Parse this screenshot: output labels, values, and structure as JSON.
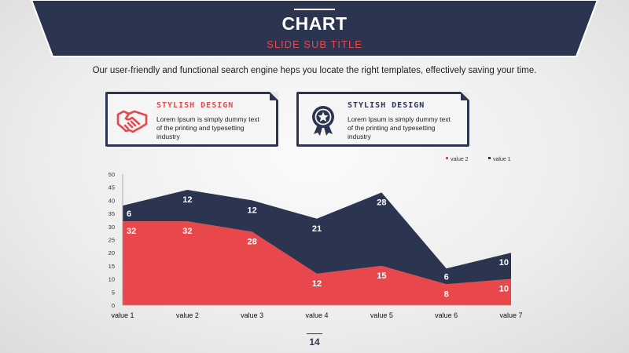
{
  "header": {
    "title": "CHART",
    "subtitle": "SLIDE SUB TITLE"
  },
  "intro_text": "Our user-friendly and functional search engine heps you locate the right templates, effectively saving your time.",
  "cards": [
    {
      "heading": "STYLISH  DESIGN",
      "text": "Lorem Ipsum is simply dummy text of the printing and typesetting industry",
      "icon": "handshake-icon",
      "heading_color": "#e8474c"
    },
    {
      "heading": "STYLISH  DESIGN",
      "text": "Lorem Ipsum is simply dummy text of the printing and typesetting industry",
      "icon": "award-medal-icon",
      "heading_color": "#2c3550"
    }
  ],
  "page_number": "14",
  "colors": {
    "navy": "#2c3550",
    "red": "#e8474c"
  },
  "chart_data": {
    "type": "area",
    "stacked": true,
    "categories": [
      "value 1",
      "value 2",
      "value 3",
      "value 4",
      "value 5",
      "value 6",
      "value 7"
    ],
    "series": [
      {
        "name": "value 2",
        "values": [
          32,
          32,
          28,
          12,
          15,
          8,
          10
        ],
        "color": "#e8474c"
      },
      {
        "name": "value 1",
        "values": [
          6,
          12,
          12,
          21,
          28,
          6,
          10
        ],
        "color": "#2c3550"
      }
    ],
    "ylim": [
      0,
      50
    ],
    "yticks": [
      0,
      5,
      10,
      15,
      20,
      25,
      30,
      35,
      40,
      45,
      50
    ],
    "grid": false,
    "legend": "top-right"
  }
}
